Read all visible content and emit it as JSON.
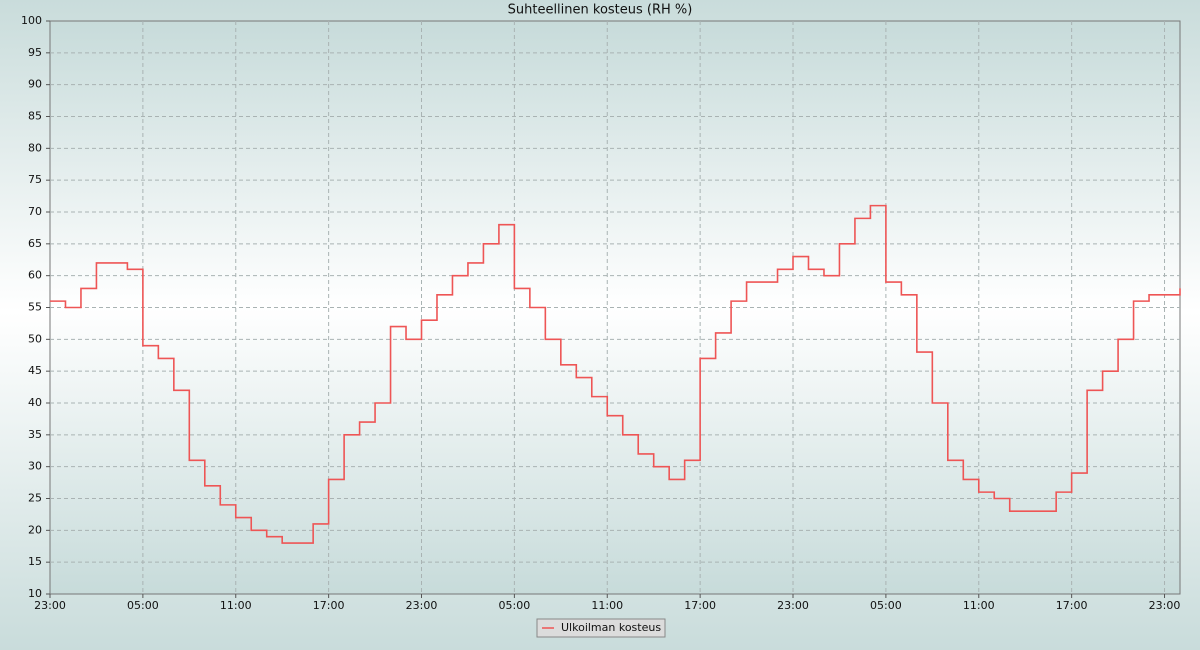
{
  "chart_data": {
    "type": "line",
    "title": "Suhteellinen kosteus (RH %)",
    "categories": [
      "23:00",
      null,
      null,
      null,
      null,
      null,
      "05:00",
      null,
      null,
      null,
      null,
      null,
      "11:00",
      null,
      null,
      null,
      null,
      null,
      "17:00",
      null,
      null,
      null,
      null,
      null,
      "23:00",
      null,
      null,
      null,
      null,
      null,
      "05:00",
      null,
      null,
      null,
      null,
      null,
      "11:00",
      null,
      null,
      null,
      null,
      null,
      "17:00",
      null,
      null,
      null,
      null,
      null,
      "23:00",
      null,
      null,
      null,
      null,
      null,
      "05:00",
      null,
      null,
      null,
      null,
      null,
      "11:00",
      null,
      null,
      null,
      null,
      null,
      "17:00",
      null,
      null,
      null,
      null,
      null,
      "23:00",
      null
    ],
    "series": [
      {
        "name": "Ulkoilman kosteus",
        "color": "#ee5555",
        "values": [
          56,
          55,
          58,
          62,
          62,
          61,
          49,
          47,
          42,
          31,
          27,
          24,
          22,
          20,
          19,
          18,
          18,
          21,
          28,
          35,
          37,
          40,
          52,
          50,
          53,
          57,
          60,
          62,
          65,
          68,
          58,
          55,
          50,
          46,
          44,
          41,
          38,
          35,
          32,
          30,
          28,
          31,
          47,
          51,
          56,
          59,
          59,
          61,
          63,
          61,
          60,
          65,
          69,
          71,
          59,
          57,
          48,
          40,
          31,
          28,
          26,
          25,
          23,
          23,
          23,
          26,
          29,
          42,
          45,
          50,
          56,
          57,
          57,
          58
        ]
      }
    ],
    "ylim": [
      10,
      100
    ],
    "yticks": [
      10,
      15,
      20,
      25,
      30,
      35,
      40,
      45,
      50,
      55,
      60,
      65,
      70,
      75,
      80,
      85,
      90,
      95,
      100
    ],
    "grid": true,
    "legend": "bottom"
  }
}
